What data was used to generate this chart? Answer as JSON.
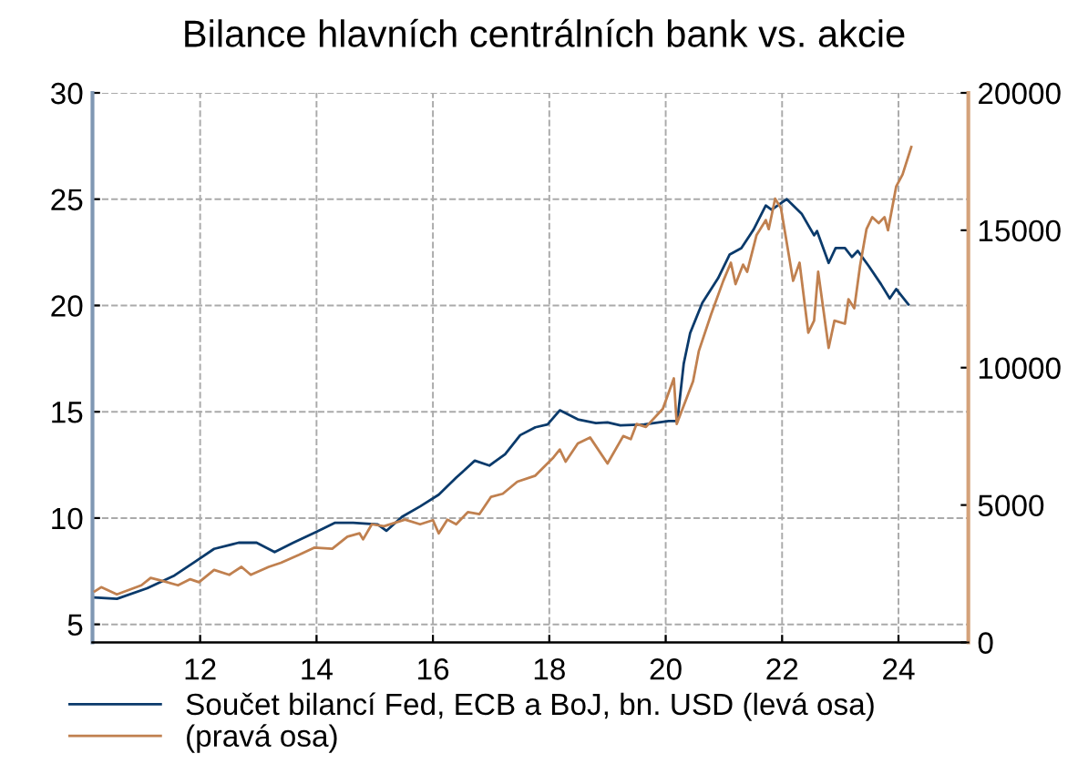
{
  "chart_data": {
    "type": "line",
    "title": "Bilance hlavních centrálních bank vs. akcie",
    "xlim": [
      10.15,
      25.2
    ],
    "xticks": [
      12,
      14,
      16,
      18,
      20,
      22,
      24
    ],
    "ylim": [
      4.15,
      30
    ],
    "yticks": [
      5,
      10,
      15,
      20,
      25,
      30
    ],
    "y2lim": [
      0,
      20000
    ],
    "y2ticks": [
      0,
      5000,
      10000,
      15000,
      20000
    ],
    "grid": true,
    "legend": "bottom",
    "line_style": "solid",
    "series": [
      {
        "name": "Součet bilancí Fed, ECB a BoJ, bn. USD (levá osa)",
        "color": "#0a3a6b",
        "x": [
          10.19,
          10.57,
          11.09,
          11.56,
          11.93,
          12.24,
          12.66,
          12.97,
          13.28,
          13.6,
          14.0,
          14.32,
          14.63,
          15.05,
          15.2,
          15.47,
          15.78,
          16.1,
          16.4,
          16.72,
          16.97,
          17.24,
          17.5,
          17.76,
          17.97,
          18.18,
          18.49,
          18.8,
          19.0,
          19.22,
          19.63,
          20.05,
          20.2,
          20.31,
          20.42,
          20.63,
          20.9,
          21.1,
          21.3,
          21.51,
          21.72,
          21.82,
          22.08,
          22.34,
          22.55,
          22.6,
          22.8,
          22.92,
          23.08,
          23.2,
          23.3,
          23.49,
          23.7,
          23.85,
          23.96,
          24.17
        ],
        "values": [
          6.26,
          6.2,
          6.7,
          7.3,
          7.98,
          8.55,
          8.84,
          8.84,
          8.4,
          8.84,
          9.35,
          9.78,
          9.78,
          9.7,
          9.4,
          10.06,
          10.55,
          11.1,
          11.9,
          12.7,
          12.47,
          13.0,
          13.9,
          14.27,
          14.4,
          15.07,
          14.64,
          14.47,
          14.5,
          14.36,
          14.4,
          14.56,
          14.56,
          17.27,
          18.7,
          20.13,
          21.28,
          22.4,
          22.7,
          23.57,
          24.7,
          24.5,
          25.0,
          24.3,
          23.3,
          23.5,
          22.0,
          22.7,
          22.7,
          22.28,
          22.57,
          21.85,
          21.0,
          20.33,
          20.77,
          20.05
        ]
      },
      {
        "name": "(pravá osa)",
        "color": "#c0804f",
        "axis": "y2",
        "x": [
          10.19,
          10.3,
          10.57,
          10.99,
          11.15,
          11.35,
          11.62,
          11.83,
          11.98,
          12.24,
          12.5,
          12.71,
          12.87,
          13.18,
          13.39,
          13.7,
          13.96,
          14.27,
          14.53,
          14.74,
          14.8,
          14.95,
          15.16,
          15.52,
          15.78,
          16.0,
          16.1,
          16.25,
          16.4,
          16.6,
          16.8,
          17.0,
          17.2,
          17.45,
          17.76,
          18.07,
          18.18,
          18.28,
          18.49,
          18.7,
          19.0,
          19.27,
          19.4,
          19.5,
          19.66,
          19.95,
          20.14,
          20.19,
          20.47,
          20.57,
          20.78,
          20.99,
          21.12,
          21.2,
          21.33,
          21.4,
          21.56,
          21.72,
          21.77,
          21.88,
          21.98,
          22.19,
          22.3,
          22.45,
          22.55,
          22.62,
          22.8,
          22.9,
          23.08,
          23.14,
          23.24,
          23.34,
          23.45,
          23.55,
          23.66,
          23.76,
          23.82,
          23.96,
          24.07,
          24.22
        ],
        "values": [
          1860,
          2010,
          1750,
          2080,
          2350,
          2240,
          2080,
          2300,
          2190,
          2640,
          2460,
          2750,
          2460,
          2750,
          2900,
          3190,
          3450,
          3410,
          3850,
          3970,
          3750,
          4300,
          4230,
          4470,
          4300,
          4450,
          3970,
          4470,
          4300,
          4740,
          4670,
          5300,
          5410,
          5850,
          6070,
          6730,
          7020,
          6580,
          7240,
          7460,
          6510,
          7510,
          7400,
          7950,
          7840,
          8500,
          9610,
          7950,
          9500,
          10610,
          11940,
          13160,
          13820,
          13040,
          13750,
          13490,
          14820,
          15370,
          15040,
          16150,
          15810,
          13160,
          13820,
          11270,
          11710,
          13490,
          10720,
          11710,
          11600,
          12490,
          12160,
          13710,
          15040,
          15480,
          15260,
          15480,
          15000,
          16590,
          17030,
          18030
        ]
      }
    ]
  }
}
